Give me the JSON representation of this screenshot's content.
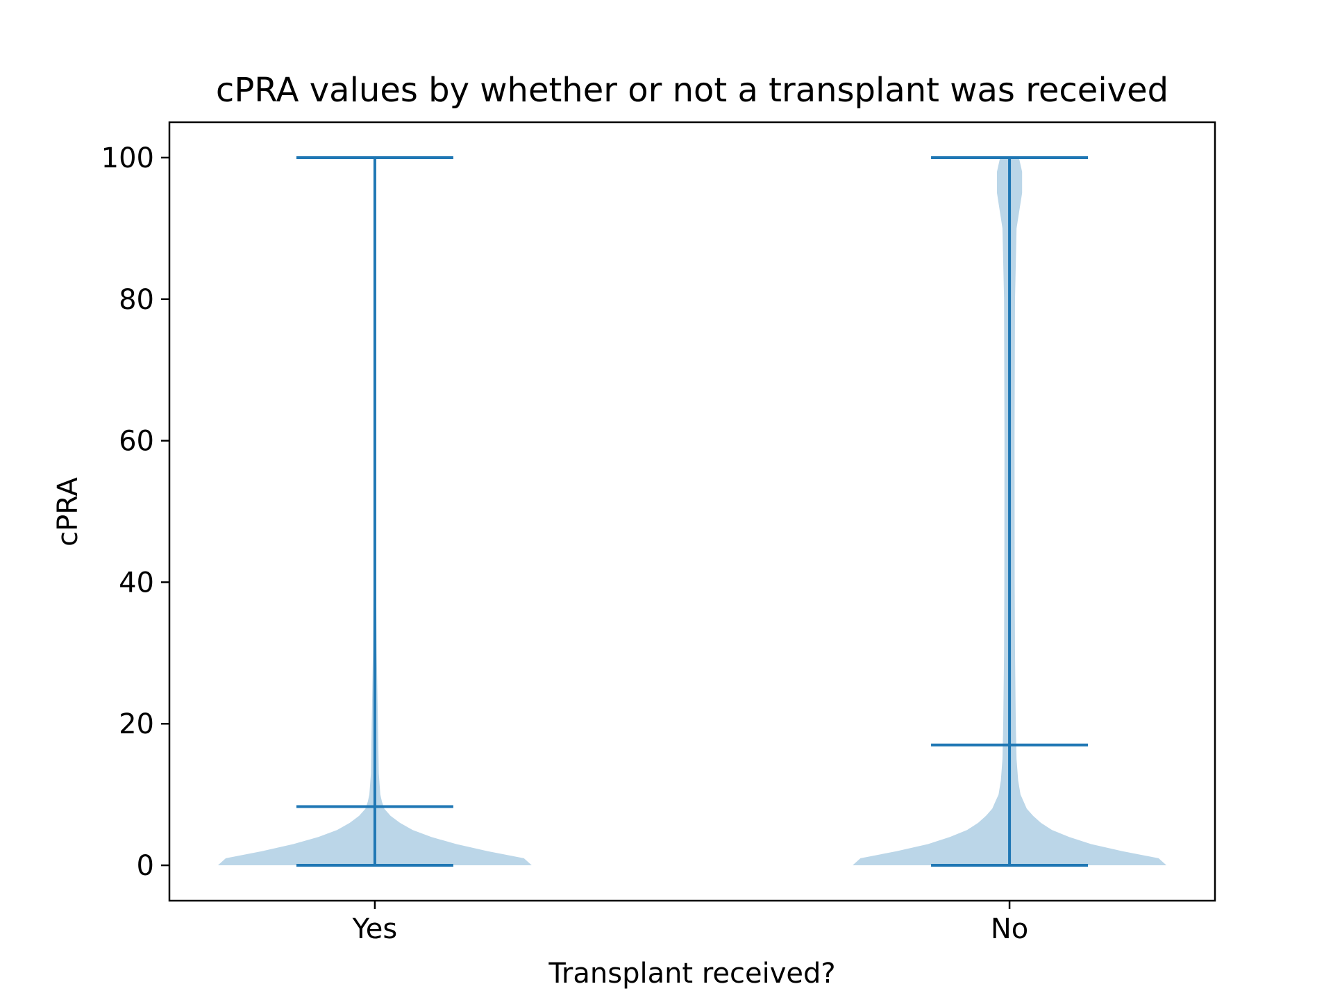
{
  "chart_data": {
    "type": "violin",
    "title": "cPRA values by whether or not a transplant was received",
    "xlabel": "Transplant received?",
    "ylabel": "cPRA",
    "categories": [
      "Yes",
      "No"
    ],
    "ylim": [
      -5,
      105
    ],
    "yticks": [
      0,
      20,
      40,
      60,
      80,
      100
    ],
    "grid": false,
    "colors": {
      "body": "#1f77b4",
      "body_opacity": 0.3,
      "lines": "#1f77b4"
    },
    "violins": [
      {
        "category": "Yes",
        "min": 0,
        "max": 100,
        "median": 8.3,
        "density": [
          [
            0,
            1.0
          ],
          [
            1,
            0.95
          ],
          [
            2,
            0.72
          ],
          [
            3,
            0.52
          ],
          [
            4,
            0.36
          ],
          [
            5,
            0.24
          ],
          [
            6,
            0.16
          ],
          [
            7,
            0.1
          ],
          [
            8,
            0.06
          ],
          [
            9,
            0.045
          ],
          [
            10,
            0.035
          ],
          [
            13,
            0.025
          ],
          [
            20,
            0.02
          ],
          [
            30,
            0.012
          ],
          [
            40,
            0.008
          ],
          [
            60,
            0.006
          ],
          [
            80,
            0.006
          ],
          [
            100,
            0.006
          ]
        ]
      },
      {
        "category": "No",
        "min": 0,
        "max": 100,
        "median": 17.0,
        "density": [
          [
            0,
            1.0
          ],
          [
            1,
            0.95
          ],
          [
            2,
            0.72
          ],
          [
            3,
            0.52
          ],
          [
            4,
            0.38
          ],
          [
            5,
            0.27
          ],
          [
            6,
            0.2
          ],
          [
            7,
            0.15
          ],
          [
            8,
            0.11
          ],
          [
            9,
            0.09
          ],
          [
            10,
            0.07
          ],
          [
            12,
            0.055
          ],
          [
            15,
            0.045
          ],
          [
            20,
            0.04
          ],
          [
            30,
            0.035
          ],
          [
            40,
            0.033
          ],
          [
            60,
            0.032
          ],
          [
            80,
            0.035
          ],
          [
            90,
            0.045
          ],
          [
            95,
            0.08
          ],
          [
            98,
            0.08
          ],
          [
            100,
            0.06
          ]
        ]
      }
    ]
  }
}
